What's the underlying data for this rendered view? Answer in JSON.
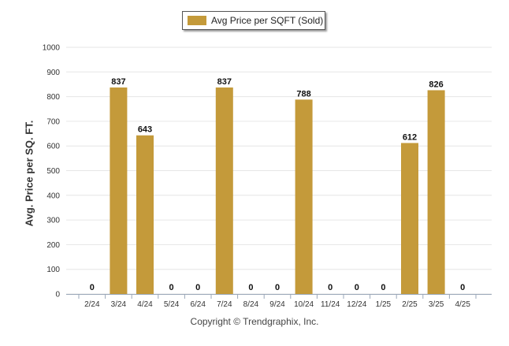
{
  "chart_data": {
    "type": "bar",
    "title": "",
    "xlabel": "",
    "ylabel": "Avg. Price per SQ. FT.",
    "ylim": [
      0,
      1000
    ],
    "yticks": [
      0,
      100,
      200,
      300,
      400,
      500,
      600,
      700,
      800,
      900,
      1000
    ],
    "grid": true,
    "legend_position": "top-center",
    "categories": [
      "2/24",
      "3/24",
      "4/24",
      "5/24",
      "6/24",
      "7/24",
      "8/24",
      "9/24",
      "10/24",
      "11/24",
      "12/24",
      "1/25",
      "2/25",
      "3/25",
      "4/25"
    ],
    "series": [
      {
        "name": "Avg Price per SQFT (Sold)",
        "color": "#c49a3a",
        "values": [
          0,
          837,
          643,
          0,
          0,
          837,
          0,
          0,
          788,
          0,
          0,
          0,
          612,
          826,
          0
        ]
      }
    ]
  },
  "footer": {
    "copyright": "Copyright © Trendgraphix, Inc."
  }
}
